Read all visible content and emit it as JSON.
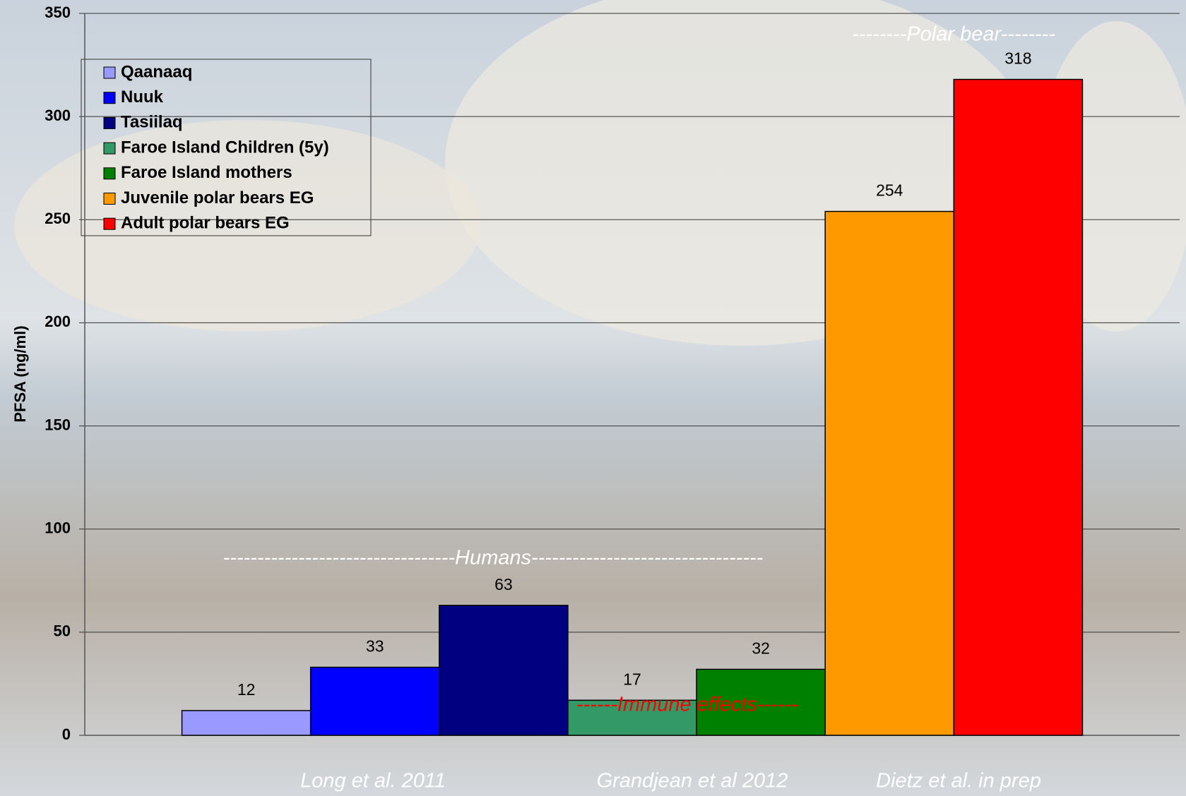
{
  "chart_data": {
    "type": "bar",
    "y_label": "PFSA (ng/ml)",
    "series": [
      {
        "name": "Qaanaaq",
        "color": "#9999ff",
        "values": [
          12
        ]
      },
      {
        "name": "Nuuk",
        "color": "#0000ff",
        "values": [
          33
        ]
      },
      {
        "name": "Tasiilaq",
        "color": "#000080",
        "values": [
          63
        ]
      },
      {
        "name": "Faroe Island Children (5y)",
        "color": "#339966",
        "values": [
          17
        ]
      },
      {
        "name": "Faroe Island mothers",
        "color": "#008000",
        "values": [
          32
        ]
      },
      {
        "name": "Juvenile polar bears EG",
        "color": "#ff9900",
        "values": [
          254
        ]
      },
      {
        "name": "Adult polar bears EG",
        "color": "#ff0000",
        "values": [
          318
        ]
      }
    ],
    "ylim": [
      0,
      350
    ],
    "yticks": [
      0,
      50,
      100,
      150,
      200,
      250,
      300,
      350
    ],
    "grid": true,
    "legend": "top-left",
    "annotations": [
      "--------Polar bear--------",
      "----------------------------------Humans----------------------------------",
      "------Immune effects------"
    ],
    "group_labels": [
      "Long et al. 2011",
      "Grandjean et al 2012",
      "Dietz et al. in prep"
    ]
  }
}
